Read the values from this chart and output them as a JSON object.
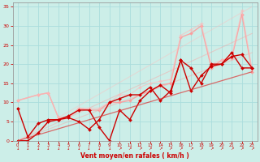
{
  "bg_color": "#cceee8",
  "grid_color": "#aadddd",
  "xlabel": "Vent moyen/en rafales ( km/h )",
  "xlabel_color": "#cc0000",
  "tick_color": "#cc0000",
  "xlim": [
    -0.5,
    23.5
  ],
  "ylim": [
    0,
    36
  ],
  "xticks": [
    0,
    1,
    2,
    3,
    4,
    5,
    6,
    7,
    8,
    9,
    10,
    11,
    12,
    13,
    14,
    15,
    16,
    17,
    18,
    19,
    20,
    21,
    22,
    23
  ],
  "yticks": [
    0,
    5,
    10,
    15,
    20,
    25,
    30,
    35
  ],
  "series": [
    {
      "x": [
        0,
        23
      ],
      "y": [
        0,
        23
      ],
      "color": "#ff9999",
      "alpha": 0.4,
      "linewidth": 0.8,
      "marker": null
    },
    {
      "x": [
        0,
        23
      ],
      "y": [
        0,
        28
      ],
      "color": "#ff9999",
      "alpha": 0.4,
      "linewidth": 0.8,
      "marker": null
    },
    {
      "x": [
        0,
        23
      ],
      "y": [
        0,
        35
      ],
      "color": "#ffbbbb",
      "alpha": 0.4,
      "linewidth": 0.8,
      "marker": null
    },
    {
      "x": [
        0,
        2,
        3,
        4,
        5,
        6,
        7,
        8,
        9,
        10,
        11,
        12,
        13,
        14,
        15,
        16,
        17,
        18,
        19,
        20,
        21,
        22,
        23
      ],
      "y": [
        10.5,
        12,
        12.5,
        6,
        6,
        8.5,
        8,
        8,
        10,
        10,
        10.5,
        12,
        13,
        14.5,
        15,
        27,
        28,
        30,
        19,
        21,
        21.5,
        33,
        18
      ],
      "color": "#ff9999",
      "alpha": 0.85,
      "linewidth": 1.0,
      "marker": "D",
      "markersize": 2.0
    },
    {
      "x": [
        0,
        2,
        3,
        4,
        5,
        6,
        7,
        8,
        9,
        10,
        11,
        12,
        13,
        14,
        15,
        16,
        17,
        18,
        19,
        20,
        21,
        22,
        23
      ],
      "y": [
        10.5,
        12,
        12.5,
        6,
        6,
        8.5,
        8.5,
        8.5,
        10,
        12,
        12,
        14,
        15,
        15.5,
        16,
        27.5,
        29,
        30.5,
        20,
        21,
        22,
        34,
        18.5
      ],
      "color": "#ffbbbb",
      "alpha": 0.6,
      "linewidth": 0.9,
      "marker": "D",
      "markersize": 2.0
    },
    {
      "x": [
        0,
        1,
        2,
        3,
        4,
        5,
        6,
        7,
        8,
        9,
        10,
        11,
        12,
        13,
        14,
        15,
        16,
        17,
        18,
        19,
        20,
        21,
        22,
        23
      ],
      "y": [
        8.5,
        1,
        4.5,
        5.5,
        5.5,
        6.5,
        8,
        8,
        3.5,
        0,
        8,
        5.5,
        10.5,
        13,
        14.5,
        12.5,
        21,
        13,
        17,
        19.5,
        20,
        22,
        22.5,
        19
      ],
      "color": "#cc0000",
      "alpha": 1.0,
      "linewidth": 1.0,
      "marker": "D",
      "markersize": 2.0
    },
    {
      "x": [
        0,
        1,
        2,
        3,
        4,
        5,
        6,
        7,
        8,
        9,
        10,
        11,
        12,
        13,
        14,
        15,
        16,
        17,
        18,
        19,
        20,
        21,
        22,
        23
      ],
      "y": [
        0,
        0,
        2,
        5,
        5.5,
        6,
        5,
        3,
        5.5,
        10,
        11,
        12,
        12,
        14,
        10.5,
        13,
        21,
        19,
        15,
        20,
        20,
        23,
        19,
        19
      ],
      "color": "#cc0000",
      "alpha": 1.0,
      "linewidth": 1.0,
      "marker": "D",
      "markersize": 2.0
    },
    {
      "x": [
        0,
        23
      ],
      "y": [
        0,
        18
      ],
      "color": "#dd3333",
      "alpha": 0.7,
      "linewidth": 0.9,
      "marker": null
    }
  ]
}
